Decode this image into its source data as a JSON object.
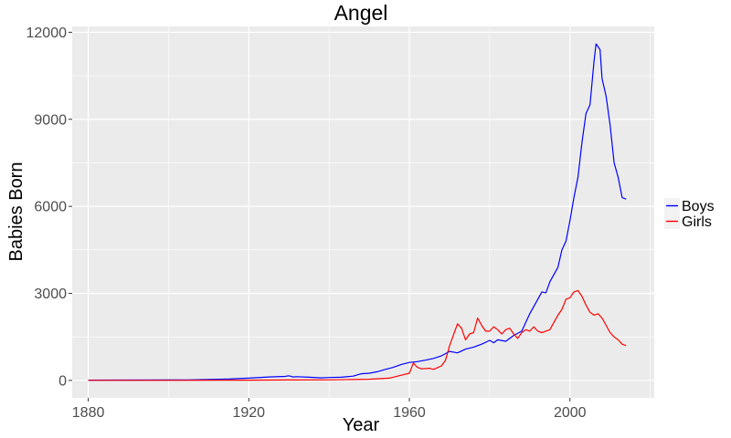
{
  "chart_data": {
    "type": "line",
    "title": "Angel",
    "xlabel": "Year",
    "ylabel": "Babies Born",
    "xlim": [
      1876,
      2021
    ],
    "ylim": [
      -600,
      12200
    ],
    "x_ticks": [
      1880,
      1920,
      1960,
      2000
    ],
    "y_ticks": [
      0,
      3000,
      6000,
      9000,
      12000
    ],
    "x_tick_labels": [
      "1880",
      "1920",
      "1960",
      "2000"
    ],
    "y_tick_labels": [
      "0",
      "3000",
      "6000",
      "9000",
      "12000"
    ],
    "grid": true,
    "legend_position": "right",
    "series": [
      {
        "name": "Boys",
        "color": "#0000ff",
        "points": [
          [
            1880,
            10
          ],
          [
            1890,
            12
          ],
          [
            1900,
            15
          ],
          [
            1905,
            20
          ],
          [
            1910,
            35
          ],
          [
            1915,
            50
          ],
          [
            1920,
            80
          ],
          [
            1925,
            120
          ],
          [
            1929,
            140
          ],
          [
            1930,
            160
          ],
          [
            1931,
            120
          ],
          [
            1932,
            130
          ],
          [
            1935,
            110
          ],
          [
            1938,
            90
          ],
          [
            1940,
            100
          ],
          [
            1943,
            110
          ],
          [
            1946,
            150
          ],
          [
            1948,
            230
          ],
          [
            1950,
            250
          ],
          [
            1952,
            300
          ],
          [
            1954,
            380
          ],
          [
            1956,
            450
          ],
          [
            1958,
            550
          ],
          [
            1960,
            620
          ],
          [
            1962,
            650
          ],
          [
            1964,
            700
          ],
          [
            1966,
            760
          ],
          [
            1968,
            850
          ],
          [
            1970,
            1000
          ],
          [
            1972,
            950
          ],
          [
            1974,
            1080
          ],
          [
            1976,
            1150
          ],
          [
            1978,
            1250
          ],
          [
            1980,
            1380
          ],
          [
            1981,
            1300
          ],
          [
            1982,
            1400
          ],
          [
            1984,
            1350
          ],
          [
            1986,
            1550
          ],
          [
            1988,
            1700
          ],
          [
            1990,
            2300
          ],
          [
            1992,
            2800
          ],
          [
            1993,
            3050
          ],
          [
            1994,
            3020
          ],
          [
            1995,
            3400
          ],
          [
            1997,
            3900
          ],
          [
            1998,
            4500
          ],
          [
            1999,
            4800
          ],
          [
            2000,
            5500
          ],
          [
            2001,
            6300
          ],
          [
            2002,
            7000
          ],
          [
            2003,
            8200
          ],
          [
            2004,
            9200
          ],
          [
            2005,
            9500
          ],
          [
            2006,
            11000
          ],
          [
            2006.5,
            11600
          ],
          [
            2007.5,
            11400
          ],
          [
            2008,
            10400
          ],
          [
            2009,
            9800
          ],
          [
            2010,
            8800
          ],
          [
            2011,
            7500
          ],
          [
            2012,
            7000
          ],
          [
            2013,
            6300
          ],
          [
            2014,
            6250
          ]
        ]
      },
      {
        "name": "Girls",
        "color": "#ff0000",
        "points": [
          [
            1880,
            5
          ],
          [
            1900,
            5
          ],
          [
            1920,
            10
          ],
          [
            1930,
            15
          ],
          [
            1940,
            20
          ],
          [
            1950,
            40
          ],
          [
            1955,
            80
          ],
          [
            1958,
            180
          ],
          [
            1960,
            250
          ],
          [
            1961,
            600
          ],
          [
            1962,
            450
          ],
          [
            1963,
            400
          ],
          [
            1965,
            420
          ],
          [
            1966,
            380
          ],
          [
            1968,
            500
          ],
          [
            1969,
            700
          ],
          [
            1970,
            1200
          ],
          [
            1972,
            1950
          ],
          [
            1973,
            1800
          ],
          [
            1974,
            1400
          ],
          [
            1975,
            1600
          ],
          [
            1976,
            1650
          ],
          [
            1977,
            2150
          ],
          [
            1978,
            1900
          ],
          [
            1979,
            1700
          ],
          [
            1980,
            1700
          ],
          [
            1981,
            1850
          ],
          [
            1982,
            1750
          ],
          [
            1983,
            1600
          ],
          [
            1984,
            1750
          ],
          [
            1985,
            1800
          ],
          [
            1986,
            1600
          ],
          [
            1987,
            1450
          ],
          [
            1988,
            1650
          ],
          [
            1989,
            1750
          ],
          [
            1990,
            1700
          ],
          [
            1991,
            1850
          ],
          [
            1992,
            1700
          ],
          [
            1993,
            1650
          ],
          [
            1994,
            1700
          ],
          [
            1995,
            1750
          ],
          [
            1996,
            2000
          ],
          [
            1997,
            2250
          ],
          [
            1998,
            2450
          ],
          [
            1999,
            2800
          ],
          [
            2000,
            2850
          ],
          [
            2001,
            3050
          ],
          [
            2002,
            3100
          ],
          [
            2003,
            2900
          ],
          [
            2004,
            2600
          ],
          [
            2005,
            2350
          ],
          [
            2006,
            2250
          ],
          [
            2007,
            2300
          ],
          [
            2008,
            2150
          ],
          [
            2009,
            1900
          ],
          [
            2010,
            1650
          ],
          [
            2011,
            1500
          ],
          [
            2012,
            1400
          ],
          [
            2013,
            1250
          ],
          [
            2014,
            1200
          ]
        ]
      }
    ],
    "panel_color": "#ebebeb",
    "grid_color": "#ffffff"
  }
}
